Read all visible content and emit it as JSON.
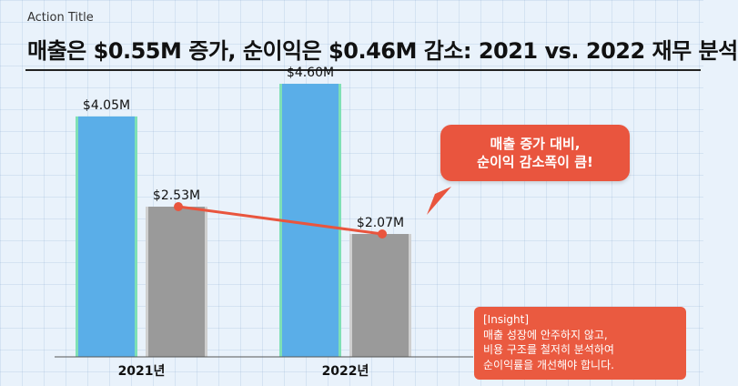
{
  "header": {
    "action_label": "Action Title",
    "title": "매출은 $0.55M 증가, 순이익은 $0.46M 감소: 2021 vs. 2022 재무 분석"
  },
  "callout": {
    "line1": "매출 증가 대비,",
    "line2": "순이익 감소폭이 큼!"
  },
  "insight": {
    "heading": "[Insight]",
    "line1": "매출 성장에 안주하지 않고,",
    "line2": "비용 구조를 철저히 분석하여",
    "line3": "순이익률을 개선해야 합니다."
  },
  "colors": {
    "revenue": "#5aaee8",
    "revenue_edge": "#7fe0b5",
    "net_income": "#9a9a9a",
    "accent": "#e9553e",
    "background": "#e9f2fb"
  },
  "chart_data": {
    "type": "bar",
    "categories": [
      "2021년",
      "2022년"
    ],
    "series": [
      {
        "values": [
          4.05,
          4.6
        ],
        "labels": [
          "$4.05M",
          "$4.60M"
        ]
      },
      {
        "values": [
          2.53,
          2.07
        ],
        "labels": [
          "$2.53M",
          "$2.07M"
        ]
      }
    ],
    "ylim": [
      0,
      4.8
    ],
    "grid": true,
    "trend_line_series": 1
  }
}
